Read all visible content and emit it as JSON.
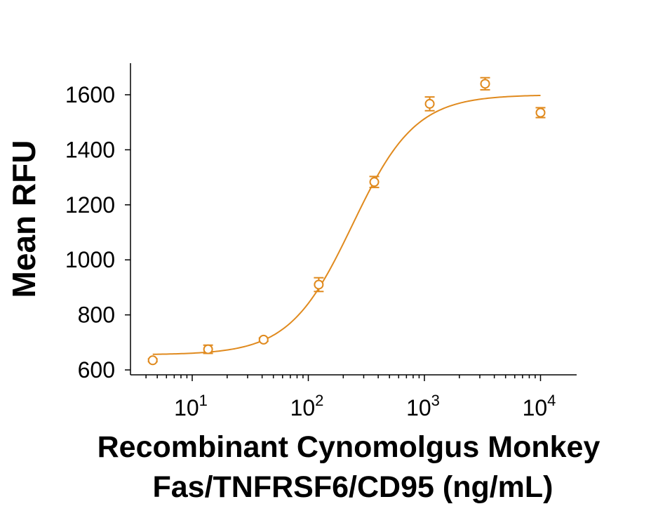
{
  "chart_data": {
    "type": "scatter",
    "xscale": "log",
    "xlim": [
      4,
      14000
    ],
    "ylim": [
      600,
      1700
    ],
    "ylabel": "Mean RFU",
    "xlabel_lines": [
      "Recombinant Cynomolgus Monkey",
      "Fas/TNFRSF6/CD95 (ng/mL)"
    ],
    "yticks": [
      600,
      800,
      1000,
      1200,
      1400,
      1600
    ],
    "yticks_labels": [
      "600",
      "800",
      "1000",
      "1200",
      "1400",
      "1600"
    ],
    "xticks": [
      10,
      100,
      1000,
      10000
    ],
    "xtick_labels": [
      {
        "base": "10",
        "exp": "1"
      },
      {
        "base": "10",
        "exp": "2"
      },
      {
        "base": "10",
        "exp": "3"
      },
      {
        "base": "10",
        "exp": "4"
      }
    ],
    "color": "#E08A1E",
    "grid": false,
    "series": [
      {
        "points": [
          {
            "x": 4.57,
            "y": 635,
            "err": 5
          },
          {
            "x": 13.7,
            "y": 675,
            "err": 15
          },
          {
            "x": 41.2,
            "y": 710,
            "err": 6
          },
          {
            "x": 123,
            "y": 910,
            "err": 25
          },
          {
            "x": 370,
            "y": 1283,
            "err": 20
          },
          {
            "x": 1111,
            "y": 1567,
            "err": 25
          },
          {
            "x": 3333,
            "y": 1640,
            "err": 22
          },
          {
            "x": 10000,
            "y": 1535,
            "err": 18
          }
        ]
      }
    ],
    "fit": {
      "model": "4PL",
      "bottom": 655,
      "top": 1600,
      "ec50": 240,
      "hill": 1.6,
      "xmin": 4.57,
      "xmax": 10000
    }
  }
}
